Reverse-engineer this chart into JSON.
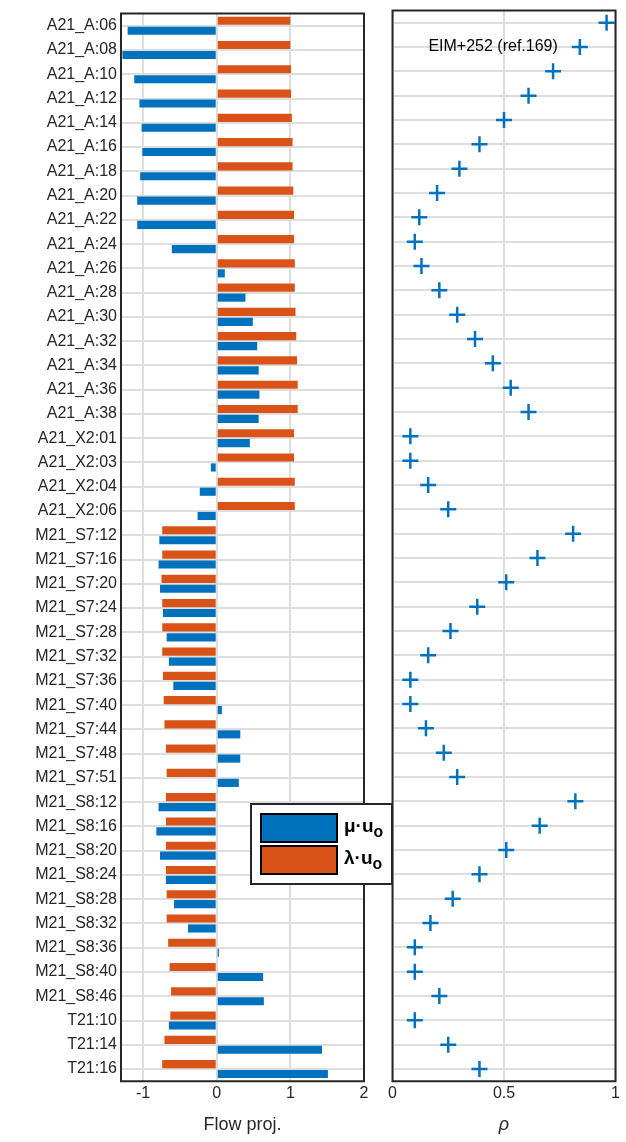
{
  "chart_data": [
    {
      "type": "bar",
      "orientation": "horizontal",
      "xlabel": "Flow proj.",
      "categories": [
        "A21_A:06",
        "A21_A:08",
        "A21_A:10",
        "A21_A:12",
        "A21_A:14",
        "A21_A:16",
        "A21_A:18",
        "A21_A:20",
        "A21_A:22",
        "A21_A:24",
        "A21_A:26",
        "A21_A:28",
        "A21_A:30",
        "A21_A:32",
        "A21_A:34",
        "A21_A:36",
        "A21_A:38",
        "A21_X2:01",
        "A21_X2:03",
        "A21_X2:04",
        "A21_X2:06",
        "M21_S7:12",
        "M21_S7:16",
        "M21_S7:20",
        "M21_S7:24",
        "M21_S7:28",
        "M21_S7:32",
        "M21_S7:36",
        "M21_S7:40",
        "M21_S7:44",
        "M21_S7:48",
        "M21_S7:51",
        "M21_S8:12",
        "M21_S8:16",
        "M21_S8:20",
        "M21_S8:24",
        "M21_S8:28",
        "M21_S8:32",
        "M21_S8:36",
        "M21_S8:40",
        "M21_S8:46",
        "T21:10",
        "T21:14",
        "T21:16"
      ],
      "series": [
        {
          "name": "μ·u$_{o}$",
          "color": "#0072bd",
          "values": [
            -1.21,
            -1.28,
            -1.12,
            -1.05,
            -1.02,
            -1.01,
            -1.04,
            -1.08,
            -1.08,
            -0.61,
            0.11,
            0.39,
            0.49,
            0.55,
            0.57,
            0.58,
            0.57,
            0.45,
            -0.08,
            -0.23,
            -0.26,
            -0.78,
            -0.79,
            -0.77,
            -0.73,
            -0.68,
            -0.65,
            -0.59,
            0.07,
            0.32,
            0.32,
            0.3,
            -0.79,
            -0.82,
            -0.77,
            -0.69,
            -0.58,
            -0.39,
            0.03,
            0.63,
            0.64,
            -0.65,
            1.43,
            1.51
          ]
        },
        {
          "name": "λ·u$_{o}$",
          "color": "#d95319",
          "values": [
            1.0,
            1.0,
            1.01,
            1.01,
            1.02,
            1.03,
            1.03,
            1.04,
            1.05,
            1.05,
            1.06,
            1.06,
            1.07,
            1.08,
            1.09,
            1.1,
            1.1,
            1.05,
            1.05,
            1.06,
            1.06,
            -0.74,
            -0.74,
            -0.75,
            -0.74,
            -0.74,
            -0.74,
            -0.73,
            -0.72,
            -0.71,
            -0.69,
            -0.68,
            -0.69,
            -0.69,
            -0.69,
            -0.69,
            -0.68,
            -0.68,
            -0.66,
            -0.64,
            -0.62,
            -0.63,
            -0.71,
            -0.74
          ]
        }
      ],
      "xlim": [
        -1.3,
        2
      ],
      "xticks": [
        -1,
        0,
        1,
        2
      ],
      "grid": true,
      "legend": "bottom right"
    },
    {
      "type": "scatter",
      "orientation": "horizontal",
      "xlabel": "ρ",
      "marker": "cross",
      "color": "#0072bd",
      "categories": [
        "A21_A:06",
        "A21_A:08",
        "A21_A:10",
        "A21_A:12",
        "A21_A:14",
        "A21_A:16",
        "A21_A:18",
        "A21_A:20",
        "A21_A:22",
        "A21_A:24",
        "A21_A:26",
        "A21_A:28",
        "A21_A:30",
        "A21_A:32",
        "A21_A:34",
        "A21_A:36",
        "A21_A:38",
        "A21_X2:01",
        "A21_X2:03",
        "A21_X2:04",
        "A21_X2:06",
        "M21_S7:12",
        "M21_S7:16",
        "M21_S7:20",
        "M21_S7:24",
        "M21_S7:28",
        "M21_S7:32",
        "M21_S7:36",
        "M21_S7:40",
        "M21_S7:44",
        "M21_S7:48",
        "M21_S7:51",
        "M21_S8:12",
        "M21_S8:16",
        "M21_S8:20",
        "M21_S8:24",
        "M21_S8:28",
        "M21_S8:32",
        "M21_S8:36",
        "M21_S8:40",
        "M21_S8:46",
        "T21:10",
        "T21:14",
        "T21:16"
      ],
      "values": [
        0.96,
        0.84,
        0.72,
        0.61,
        0.5,
        0.39,
        0.3,
        0.2,
        0.12,
        0.1,
        0.13,
        0.21,
        0.29,
        0.37,
        0.45,
        0.53,
        0.61,
        0.08,
        0.08,
        0.16,
        0.25,
        0.81,
        0.65,
        0.51,
        0.38,
        0.26,
        0.16,
        0.08,
        0.08,
        0.15,
        0.23,
        0.29,
        0.82,
        0.66,
        0.51,
        0.39,
        0.27,
        0.17,
        0.1,
        0.1,
        0.21,
        0.1,
        0.25,
        0.39
      ],
      "annotations": [
        {
          "text": "EIM+252 (ref.169)",
          "x": 0.84,
          "y": "A21_A:08"
        }
      ],
      "xlim": [
        0,
        1
      ],
      "xticks": [
        0,
        0.5,
        1
      ],
      "grid": true,
      "tick_labels": "x"
    }
  ]
}
